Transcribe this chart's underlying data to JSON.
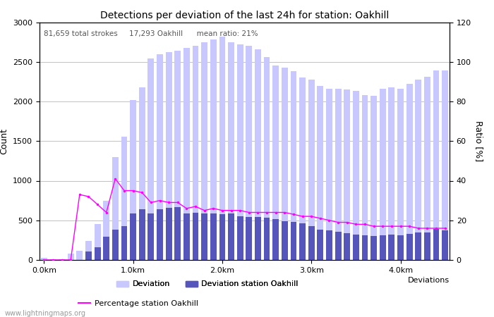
{
  "title": "Detections per deviation of the last 24h for station: Oakhill",
  "annotation": "81,659 total strokes     17,293 Oakhill      mean ratio: 21%",
  "ylabel_left": "Count",
  "ylabel_right": "Ratio [%]",
  "xlim": [
    -0.5,
    45.5
  ],
  "ylim_left": [
    0,
    3000
  ],
  "ylim_right": [
    0,
    120
  ],
  "xtick_positions": [
    0,
    10,
    20,
    30,
    40
  ],
  "xtick_labels": [
    "0.0km",
    "1.0km",
    "2.0km",
    "3.0km",
    "4.0km"
  ],
  "yticks_left": [
    0,
    500,
    1000,
    1500,
    2000,
    2500,
    3000
  ],
  "yticks_right": [
    0,
    20,
    40,
    60,
    80,
    100,
    120
  ],
  "bar_width": 0.7,
  "total_bars": [
    30,
    10,
    5,
    80,
    120,
    240,
    450,
    750,
    1300,
    1560,
    2020,
    2180,
    2540,
    2600,
    2620,
    2640,
    2680,
    2700,
    2750,
    2780,
    2820,
    2750,
    2720,
    2700,
    2660,
    2560,
    2450,
    2430,
    2380,
    2300,
    2280,
    2200,
    2160,
    2160,
    2150,
    2130,
    2080,
    2070,
    2160,
    2180,
    2160,
    2220,
    2280,
    2310,
    2390,
    2390
  ],
  "station_bars": [
    0,
    0,
    0,
    0,
    0,
    110,
    160,
    290,
    380,
    430,
    590,
    640,
    590,
    640,
    660,
    670,
    590,
    600,
    590,
    590,
    580,
    590,
    550,
    540,
    540,
    530,
    520,
    490,
    480,
    460,
    430,
    380,
    370,
    360,
    340,
    320,
    310,
    300,
    310,
    320,
    310,
    330,
    350,
    350,
    390,
    370
  ],
  "ratio_line": [
    0,
    0,
    0,
    0,
    33,
    32,
    28,
    24,
    41,
    35,
    35,
    34,
    29,
    30,
    29,
    29,
    26,
    27,
    25,
    26,
    25,
    25,
    25,
    24,
    24,
    24,
    24,
    24,
    23,
    22,
    22,
    21,
    20,
    19,
    19,
    18,
    18,
    17,
    17,
    17,
    17,
    17,
    16,
    16,
    16,
    16
  ],
  "color_total": "#c8c8ff",
  "color_station": "#5555bb",
  "color_line": "#ff00ff",
  "background_color": "#ffffff",
  "grid_color": "#aaaaaa",
  "watermark": "www.lightningmaps.org"
}
